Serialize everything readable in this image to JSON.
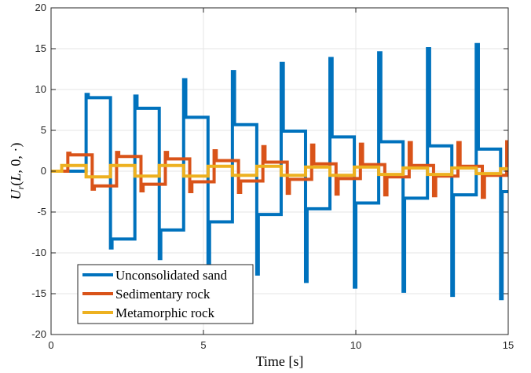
{
  "chart_data": {
    "type": "line",
    "title": "",
    "xlabel": "Time [s]",
    "ylabel": "U_r(L, 0, ·)",
    "xlim": [
      0,
      15
    ],
    "ylim": [
      -20,
      20
    ],
    "xticks": [
      "0",
      "5",
      "10",
      "15"
    ],
    "yticks": [
      "-20",
      "-15",
      "-10",
      "-5",
      "0",
      "5",
      "10",
      "15",
      "20"
    ],
    "grid": true,
    "legend_position": "bottom-left",
    "series": [
      {
        "name": "Unconsolidated sand",
        "color": "#0072BD",
        "points": [
          [
            0,
            0
          ],
          [
            1.15,
            0
          ],
          [
            1.15,
            9.4
          ],
          [
            1.22,
            9.4
          ],
          [
            1.22,
            9.0
          ],
          [
            1.95,
            9.0
          ],
          [
            1.95,
            -9.4
          ],
          [
            2.0,
            -9.4
          ],
          [
            2.0,
            -8.3
          ],
          [
            2.75,
            -8.3
          ],
          [
            2.75,
            9.2
          ],
          [
            2.82,
            9.2
          ],
          [
            2.82,
            7.7
          ],
          [
            3.55,
            7.7
          ],
          [
            3.55,
            -10.7
          ],
          [
            3.6,
            -10.7
          ],
          [
            3.6,
            -7.2
          ],
          [
            4.35,
            -7.2
          ],
          [
            4.35,
            11.2
          ],
          [
            4.42,
            11.2
          ],
          [
            4.42,
            6.6
          ],
          [
            5.15,
            6.6
          ],
          [
            5.15,
            -12.2
          ],
          [
            5.2,
            -12.2
          ],
          [
            5.2,
            -6.2
          ],
          [
            5.95,
            -6.2
          ],
          [
            5.95,
            12.2
          ],
          [
            6.02,
            12.2
          ],
          [
            6.02,
            5.7
          ],
          [
            6.75,
            5.7
          ],
          [
            6.75,
            -12.6
          ],
          [
            6.8,
            -12.6
          ],
          [
            6.8,
            -5.3
          ],
          [
            7.55,
            -5.3
          ],
          [
            7.55,
            13.2
          ],
          [
            7.62,
            13.2
          ],
          [
            7.62,
            4.9
          ],
          [
            8.35,
            4.9
          ],
          [
            8.35,
            -13.5
          ],
          [
            8.4,
            -13.5
          ],
          [
            8.4,
            -4.6
          ],
          [
            9.15,
            -4.6
          ],
          [
            9.15,
            13.8
          ],
          [
            9.22,
            13.8
          ],
          [
            9.22,
            4.2
          ],
          [
            9.95,
            4.2
          ],
          [
            9.95,
            -14.2
          ],
          [
            10.0,
            -14.2
          ],
          [
            10.0,
            -3.9
          ],
          [
            10.75,
            -3.9
          ],
          [
            10.75,
            14.5
          ],
          [
            10.82,
            14.5
          ],
          [
            10.82,
            3.6
          ],
          [
            11.55,
            3.6
          ],
          [
            11.55,
            -14.7
          ],
          [
            11.6,
            -14.7
          ],
          [
            11.6,
            -3.3
          ],
          [
            12.35,
            -3.3
          ],
          [
            12.35,
            15.0
          ],
          [
            12.42,
            15.0
          ],
          [
            12.42,
            3.1
          ],
          [
            13.15,
            3.1
          ],
          [
            13.15,
            -15.2
          ],
          [
            13.2,
            -15.2
          ],
          [
            13.2,
            -2.9
          ],
          [
            13.95,
            -2.9
          ],
          [
            13.95,
            15.5
          ],
          [
            14.02,
            15.5
          ],
          [
            14.02,
            2.7
          ],
          [
            14.75,
            2.7
          ],
          [
            14.75,
            -15.6
          ],
          [
            14.8,
            -15.6
          ],
          [
            14.8,
            -2.5
          ],
          [
            15,
            -2.5
          ]
        ]
      },
      {
        "name": "Sedimentary rock",
        "color": "#D95319",
        "points": [
          [
            0,
            0
          ],
          [
            0.55,
            0
          ],
          [
            0.55,
            2.2
          ],
          [
            0.62,
            2.2
          ],
          [
            0.62,
            2.0
          ],
          [
            1.35,
            2.0
          ],
          [
            1.35,
            -2.2
          ],
          [
            1.42,
            -2.2
          ],
          [
            1.42,
            -1.8
          ],
          [
            2.15,
            -1.8
          ],
          [
            2.15,
            2.3
          ],
          [
            2.22,
            2.3
          ],
          [
            2.22,
            1.8
          ],
          [
            2.95,
            1.8
          ],
          [
            2.95,
            -2.4
          ],
          [
            3.02,
            -2.4
          ],
          [
            3.02,
            -1.6
          ],
          [
            3.75,
            -1.6
          ],
          [
            3.75,
            2.3
          ],
          [
            3.82,
            2.3
          ],
          [
            3.82,
            1.5
          ],
          [
            4.55,
            1.5
          ],
          [
            4.55,
            -2.5
          ],
          [
            4.62,
            -2.5
          ],
          [
            4.62,
            -1.3
          ],
          [
            5.35,
            -1.3
          ],
          [
            5.35,
            2.5
          ],
          [
            5.42,
            2.5
          ],
          [
            5.42,
            1.3
          ],
          [
            6.15,
            1.3
          ],
          [
            6.15,
            -2.6
          ],
          [
            6.22,
            -2.6
          ],
          [
            6.22,
            -1.2
          ],
          [
            6.95,
            -1.2
          ],
          [
            6.95,
            3.0
          ],
          [
            7.02,
            3.0
          ],
          [
            7.02,
            1.1
          ],
          [
            7.75,
            1.1
          ],
          [
            7.75,
            -2.7
          ],
          [
            7.82,
            -2.7
          ],
          [
            7.82,
            -1.0
          ],
          [
            8.55,
            -1.0
          ],
          [
            8.55,
            3.2
          ],
          [
            8.62,
            3.2
          ],
          [
            8.62,
            0.9
          ],
          [
            9.35,
            0.9
          ],
          [
            9.35,
            -2.8
          ],
          [
            9.42,
            -2.8
          ],
          [
            9.42,
            -0.9
          ],
          [
            10.15,
            -0.9
          ],
          [
            10.15,
            3.3
          ],
          [
            10.22,
            3.3
          ],
          [
            10.22,
            0.8
          ],
          [
            10.95,
            0.8
          ],
          [
            10.95,
            -2.9
          ],
          [
            11.02,
            -2.9
          ],
          [
            11.02,
            -0.7
          ],
          [
            11.75,
            -0.7
          ],
          [
            11.75,
            3.5
          ],
          [
            11.82,
            3.5
          ],
          [
            11.82,
            0.7
          ],
          [
            12.55,
            0.7
          ],
          [
            12.55,
            -3.0
          ],
          [
            12.62,
            -3.0
          ],
          [
            12.62,
            -0.6
          ],
          [
            13.35,
            -0.6
          ],
          [
            13.35,
            3.5
          ],
          [
            13.42,
            3.5
          ],
          [
            13.42,
            0.6
          ],
          [
            14.15,
            0.6
          ],
          [
            14.15,
            -3.2
          ],
          [
            14.22,
            -3.2
          ],
          [
            14.22,
            -0.5
          ],
          [
            14.95,
            -0.5
          ],
          [
            14.95,
            3.6
          ],
          [
            15,
            3.6
          ]
        ]
      },
      {
        "name": "Metamorphic rock",
        "color": "#EDB120",
        "points": [
          [
            0,
            0
          ],
          [
            0.35,
            0
          ],
          [
            0.35,
            0.7
          ],
          [
            1.15,
            0.7
          ],
          [
            1.15,
            -0.7
          ],
          [
            1.95,
            -0.7
          ],
          [
            1.95,
            0.7
          ],
          [
            2.75,
            0.7
          ],
          [
            2.75,
            -0.6
          ],
          [
            3.55,
            -0.6
          ],
          [
            3.55,
            0.7
          ],
          [
            4.35,
            0.7
          ],
          [
            4.35,
            -0.6
          ],
          [
            5.15,
            -0.6
          ],
          [
            5.15,
            0.6
          ],
          [
            5.95,
            0.6
          ],
          [
            5.95,
            -0.5
          ],
          [
            6.75,
            -0.5
          ],
          [
            6.75,
            0.6
          ],
          [
            7.55,
            0.6
          ],
          [
            7.55,
            -0.5
          ],
          [
            8.35,
            -0.5
          ],
          [
            8.35,
            0.5
          ],
          [
            9.15,
            0.5
          ],
          [
            9.15,
            -0.5
          ],
          [
            9.95,
            -0.5
          ],
          [
            9.95,
            0.5
          ],
          [
            10.75,
            0.5
          ],
          [
            10.75,
            -0.4
          ],
          [
            11.55,
            -0.4
          ],
          [
            11.55,
            0.4
          ],
          [
            12.35,
            0.4
          ],
          [
            12.35,
            -0.4
          ],
          [
            13.15,
            -0.4
          ],
          [
            13.15,
            0.4
          ],
          [
            13.95,
            0.4
          ],
          [
            13.95,
            -0.3
          ],
          [
            14.75,
            -0.3
          ],
          [
            14.75,
            0.3
          ],
          [
            15,
            0.3
          ]
        ]
      }
    ]
  }
}
